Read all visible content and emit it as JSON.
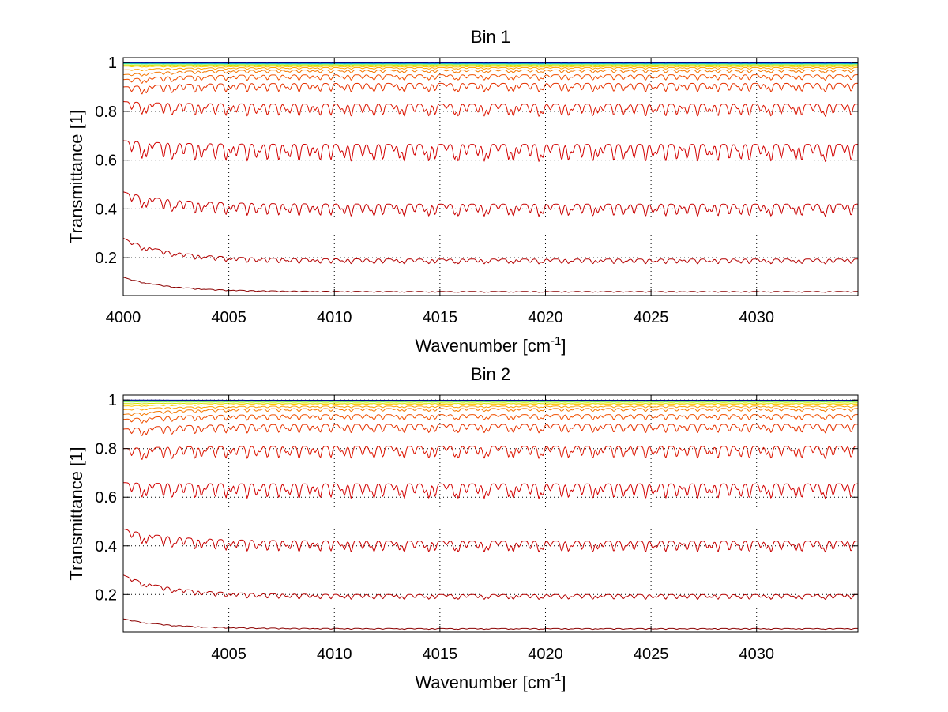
{
  "chart_data": [
    {
      "type": "line",
      "title": "Bin 1",
      "xlabel": "Wavenumber [cm",
      "xlabel_sup": "-1",
      "xlabel_tail": "]",
      "ylabel": "Transmittance [1]",
      "xlim": [
        4000,
        4034.8
      ],
      "ylim": [
        0.045,
        1.02
      ],
      "xticks": [
        4000,
        4005,
        4010,
        4015,
        4020,
        4025,
        4030
      ],
      "yticks": [
        0.2,
        0.4,
        0.6,
        0.8,
        1
      ],
      "ytick_labels": [
        "0.2",
        "0.4",
        "0.6",
        "0.8",
        "1"
      ],
      "grid": true,
      "series": [
        {
          "color": "#8b0000",
          "start": 0.12,
          "base": 0.062,
          "depth": 0.004
        },
        {
          "color": "#b40000",
          "start": 0.28,
          "base": 0.195,
          "depth": 0.02
        },
        {
          "color": "#c80000",
          "start": 0.47,
          "base": 0.42,
          "depth": 0.05
        },
        {
          "color": "#d20000",
          "start": 0.68,
          "base": 0.665,
          "depth": 0.07
        },
        {
          "color": "#dc1400",
          "start": 0.84,
          "base": 0.83,
          "depth": 0.05
        },
        {
          "color": "#e63200",
          "start": 0.9,
          "base": 0.915,
          "depth": 0.035
        },
        {
          "color": "#f05000",
          "start": 0.93,
          "base": 0.95,
          "depth": 0.022
        },
        {
          "color": "#f57800",
          "start": 0.95,
          "base": 0.97,
          "depth": 0.012
        },
        {
          "color": "#ffa000",
          "start": 0.97,
          "base": 0.98,
          "depth": 0.007
        },
        {
          "color": "#ffc800",
          "start": 0.985,
          "base": 0.985,
          "depth": 0.004
        },
        {
          "color": "#d2e600",
          "start": 0.99,
          "base": 0.99,
          "depth": 0.002
        },
        {
          "color": "#78e650",
          "start": 0.995,
          "base": 0.994,
          "depth": 0.001
        },
        {
          "color": "#00c8c8",
          "start": 0.997,
          "base": 0.996,
          "depth": 0.0008
        },
        {
          "color": "#0064dc",
          "start": 0.999,
          "base": 0.998,
          "depth": 0.0005
        },
        {
          "color": "#00008c",
          "start": 1.0,
          "base": 0.999,
          "depth": 0.0003
        }
      ]
    },
    {
      "type": "line",
      "title": "Bin 2",
      "xlabel": "Wavenumber [cm",
      "xlabel_sup": "-1",
      "xlabel_tail": "]",
      "ylabel": "Transmittance [1]",
      "xlim": [
        4000,
        4034.8
      ],
      "ylim": [
        0.045,
        1.02
      ],
      "xticks": [
        4005,
        4010,
        4015,
        4020,
        4025,
        4030
      ],
      "yticks": [
        0.2,
        0.4,
        0.6,
        0.8,
        1
      ],
      "ytick_labels": [
        "0.2",
        "0.4",
        "0.6",
        "0.8",
        "1"
      ],
      "grid": true,
      "series": [
        {
          "color": "#8b0000",
          "start": 0.1,
          "base": 0.06,
          "depth": 0.004
        },
        {
          "color": "#b40000",
          "start": 0.28,
          "base": 0.2,
          "depth": 0.02
        },
        {
          "color": "#c80000",
          "start": 0.47,
          "base": 0.42,
          "depth": 0.045
        },
        {
          "color": "#d20000",
          "start": 0.66,
          "base": 0.655,
          "depth": 0.06
        },
        {
          "color": "#dc1400",
          "start": 0.8,
          "base": 0.81,
          "depth": 0.05
        },
        {
          "color": "#e63200",
          "start": 0.88,
          "base": 0.9,
          "depth": 0.035
        },
        {
          "color": "#f05000",
          "start": 0.92,
          "base": 0.94,
          "depth": 0.022
        },
        {
          "color": "#f57800",
          "start": 0.94,
          "base": 0.965,
          "depth": 0.012
        },
        {
          "color": "#ffa000",
          "start": 0.96,
          "base": 0.975,
          "depth": 0.007
        },
        {
          "color": "#ffc800",
          "start": 0.975,
          "base": 0.983,
          "depth": 0.004
        },
        {
          "color": "#d2e600",
          "start": 0.985,
          "base": 0.988,
          "depth": 0.002
        },
        {
          "color": "#78e650",
          "start": 0.992,
          "base": 0.993,
          "depth": 0.001
        },
        {
          "color": "#00c8c8",
          "start": 0.996,
          "base": 0.996,
          "depth": 0.0008
        },
        {
          "color": "#0064dc",
          "start": 0.998,
          "base": 0.998,
          "depth": 0.0005
        },
        {
          "color": "#00008c",
          "start": 1.0,
          "base": 0.999,
          "depth": 0.0003
        }
      ]
    }
  ]
}
